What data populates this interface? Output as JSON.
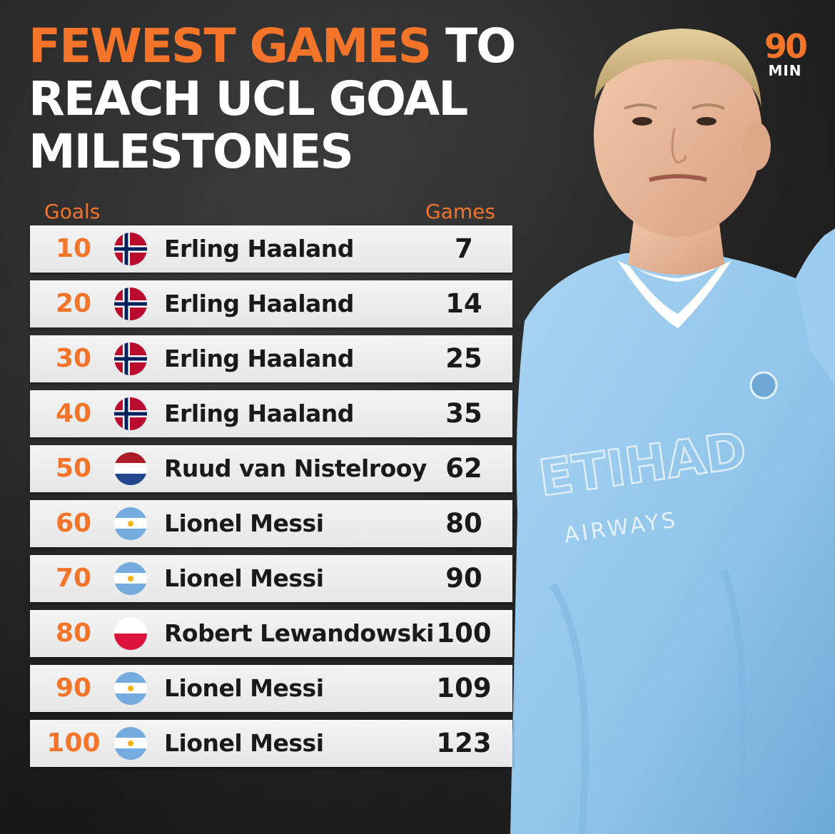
{
  "title": {
    "accent": "FEWEST GAMES",
    "rest_line1": " TO",
    "line2": "REACH UCL GOAL",
    "line3": "MILESTONES"
  },
  "logo": {
    "number": "90",
    "text": "MIN"
  },
  "headers": {
    "goals": "Goals",
    "games": "Games"
  },
  "colors": {
    "accent": "#f4742a",
    "row_bg": "#eeeeee",
    "kit_blue": "#8fc4ea"
  },
  "rows": [
    {
      "goals": "10",
      "flag": "norway-flag-icon",
      "name": "Erling Haaland",
      "games": "7"
    },
    {
      "goals": "20",
      "flag": "norway-flag-icon",
      "name": "Erling Haaland",
      "games": "14"
    },
    {
      "goals": "30",
      "flag": "norway-flag-icon",
      "name": "Erling Haaland",
      "games": "25"
    },
    {
      "goals": "40",
      "flag": "norway-flag-icon",
      "name": "Erling Haaland",
      "games": "35"
    },
    {
      "goals": "50",
      "flag": "netherlands-flag-icon",
      "name": "Ruud van Nistelrooy",
      "games": "62"
    },
    {
      "goals": "60",
      "flag": "argentina-flag-icon",
      "name": "Lionel Messi",
      "games": "80"
    },
    {
      "goals": "70",
      "flag": "argentina-flag-icon",
      "name": "Lionel Messi",
      "games": "90"
    },
    {
      "goals": "80",
      "flag": "poland-flag-icon",
      "name": "Robert Lewandowski",
      "games": "100"
    },
    {
      "goals": "90",
      "flag": "argentina-flag-icon",
      "name": "Lionel Messi",
      "games": "109"
    },
    {
      "goals": "100",
      "flag": "argentina-flag-icon",
      "name": "Lionel Messi",
      "games": "123"
    }
  ]
}
